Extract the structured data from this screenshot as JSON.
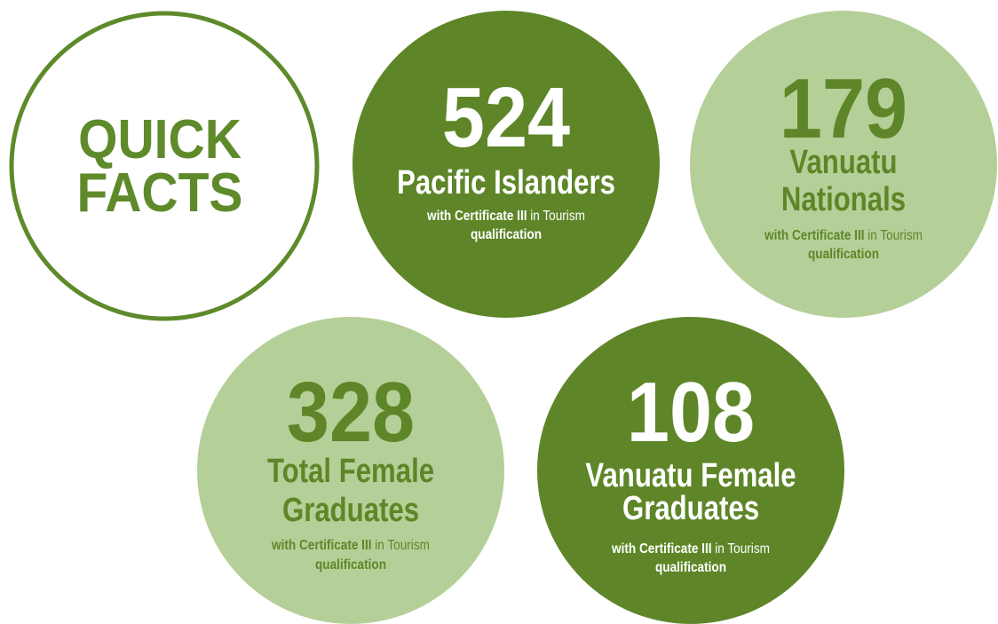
{
  "title": [
    "QUICK",
    "FACTS"
  ],
  "facts": [
    {
      "number": 524,
      "label": [
        "Pacific Islanders"
      ],
      "note": {
        "bold": "with Certificate III",
        "lines": [
          "in Tourism",
          "qualification"
        ]
      }
    },
    {
      "number": 179,
      "label": [
        "Vanuatu",
        "Nationals"
      ],
      "note": {
        "bold": "with Certificate III",
        "lines": [
          "in Tourism",
          "qualification"
        ]
      }
    },
    {
      "number": 328,
      "label": [
        "Total Female",
        "Graduates"
      ],
      "note": {
        "bold": "with Certificate III",
        "lines": [
          "in Tourism",
          "qualification"
        ]
      }
    },
    {
      "number": 108,
      "label": [
        "Vanuatu Female",
        "Graduates"
      ],
      "note": {
        "bold": "with Certificate III",
        "lines": [
          "in Tourism",
          "qualification"
        ]
      }
    }
  ]
}
